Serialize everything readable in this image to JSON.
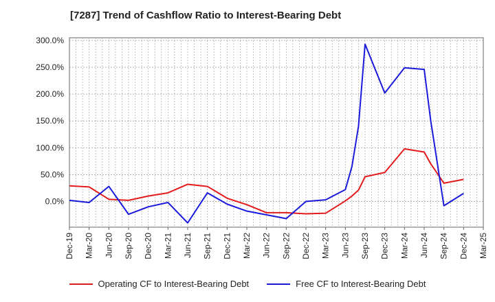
{
  "title": "[7287]  Trend of Cashflow Ratio to Interest-Bearing Debt",
  "colors": {
    "operating": "#e31a1c",
    "free": "#1a1adb",
    "grid": "#999999"
  },
  "chart_data": {
    "type": "line",
    "x": [
      "Dec-19",
      "Jan-20",
      "Feb-20",
      "Mar-20",
      "Apr-20",
      "May-20",
      "Jun-20",
      "Jul-20",
      "Aug-20",
      "Sep-20",
      "Oct-20",
      "Nov-20",
      "Dec-20",
      "Jan-21",
      "Feb-21",
      "Mar-21",
      "Apr-21",
      "May-21",
      "Jun-21",
      "Jul-21",
      "Aug-21",
      "Sep-21",
      "Oct-21",
      "Nov-21",
      "Dec-21",
      "Jan-22",
      "Feb-22",
      "Mar-22",
      "Apr-22",
      "May-22",
      "Jun-22",
      "Jul-22",
      "Aug-22",
      "Sep-22",
      "Oct-22",
      "Nov-22",
      "Dec-22",
      "Jan-23",
      "Feb-23",
      "Mar-23",
      "Apr-23",
      "May-23",
      "Jun-23",
      "Jul-23",
      "Aug-23",
      "Sep-23",
      "Oct-23",
      "Nov-23",
      "Dec-23",
      "Jan-24",
      "Feb-24",
      "Mar-24",
      "Apr-24",
      "May-24",
      "Jun-24",
      "Jul-24",
      "Aug-24",
      "Sep-24",
      "Oct-24",
      "Nov-24",
      "Dec-24",
      "Jan-25",
      "Feb-25",
      "Mar-25"
    ],
    "x_tick_labels": [
      "Dec-19",
      "Mar-20",
      "Jun-20",
      "Sep-20",
      "Dec-20",
      "Mar-21",
      "Jun-21",
      "Sep-21",
      "Dec-21",
      "Mar-22",
      "Jun-22",
      "Sep-22",
      "Dec-22",
      "Mar-23",
      "Jun-23",
      "Sep-23",
      "Dec-23",
      "Mar-24",
      "Jun-24",
      "Sep-24",
      "Dec-24",
      "Mar-25"
    ],
    "y_tick_labels": [
      "300.0%",
      "250.0%",
      "200.0%",
      "150.0%",
      "100.0%",
      "50.0%",
      "0.0%"
    ],
    "y_ticks": [
      300,
      250,
      200,
      150,
      100,
      50,
      0
    ],
    "ylim": [
      -48,
      305
    ],
    "grid": true,
    "legend_position": "bottom",
    "series": [
      {
        "name": "Operating CF to Interest-Bearing Debt",
        "color": "#e31a1c",
        "points": [
          [
            "Dec-19",
            29
          ],
          [
            "Mar-20",
            27
          ],
          [
            "Jun-20",
            4
          ],
          [
            "Sep-20",
            2
          ],
          [
            "Dec-20",
            10
          ],
          [
            "Mar-21",
            16
          ],
          [
            "Jun-21",
            32
          ],
          [
            "Sep-21",
            28
          ],
          [
            "Dec-21",
            6
          ],
          [
            "Mar-22",
            -6
          ],
          [
            "Jun-22",
            -21
          ],
          [
            "Sep-22",
            -21
          ],
          [
            "Dec-22",
            -23
          ],
          [
            "Mar-23",
            -22
          ],
          [
            "Jun-23",
            1
          ],
          [
            "Jul-23",
            10
          ],
          [
            "Aug-23",
            21
          ],
          [
            "Sep-23",
            46
          ],
          [
            "Dec-23",
            54
          ],
          [
            "Mar-24",
            98
          ],
          [
            "Jun-24",
            92
          ],
          [
            "Jul-24",
            70
          ],
          [
            "Sep-24",
            34
          ],
          [
            "Dec-24",
            41
          ]
        ]
      },
      {
        "name": "Free CF to Interest-Bearing Debt",
        "color": "#1a1adb",
        "points": [
          [
            "Dec-19",
            2
          ],
          [
            "Mar-20",
            -2
          ],
          [
            "Jun-20",
            28
          ],
          [
            "Sep-20",
            -24
          ],
          [
            "Dec-20",
            -10
          ],
          [
            "Mar-21",
            -2
          ],
          [
            "Jun-21",
            -40
          ],
          [
            "Sep-21",
            16
          ],
          [
            "Dec-21",
            -5
          ],
          [
            "Mar-22",
            -18
          ],
          [
            "Jun-22",
            -25
          ],
          [
            "Sep-22",
            -32
          ],
          [
            "Dec-22",
            0
          ],
          [
            "Mar-23",
            3
          ],
          [
            "Jun-23",
            22
          ],
          [
            "Jul-23",
            65
          ],
          [
            "Aug-23",
            140
          ],
          [
            "Sep-23",
            293
          ],
          [
            "Dec-23",
            202
          ],
          [
            "Mar-24",
            249
          ],
          [
            "Jun-24",
            246
          ],
          [
            "Jul-24",
            150
          ],
          [
            "Sep-24",
            -8
          ],
          [
            "Dec-24",
            15
          ]
        ]
      }
    ]
  }
}
